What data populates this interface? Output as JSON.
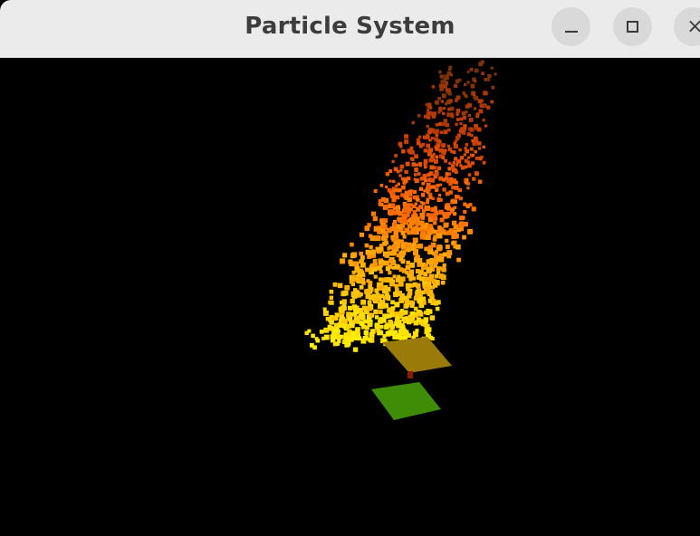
{
  "window": {
    "title": "Particle System",
    "controls": {
      "minimize_icon": "minimize-icon",
      "maximize_icon": "maximize-icon",
      "close_icon": "close-icon",
      "close_glyph": "×"
    }
  },
  "scene": {
    "background": "#000000",
    "particle_colors": {
      "hot": "#ffee00",
      "warm": "#ffb000",
      "mid": "#ff6a00",
      "cool": "#c83c00",
      "smoke": "#6e3008"
    },
    "emitter_plate_color": "#9a7a08",
    "ground_plate_color": "#3f8c06",
    "stem_color": "#8a1a00"
  }
}
